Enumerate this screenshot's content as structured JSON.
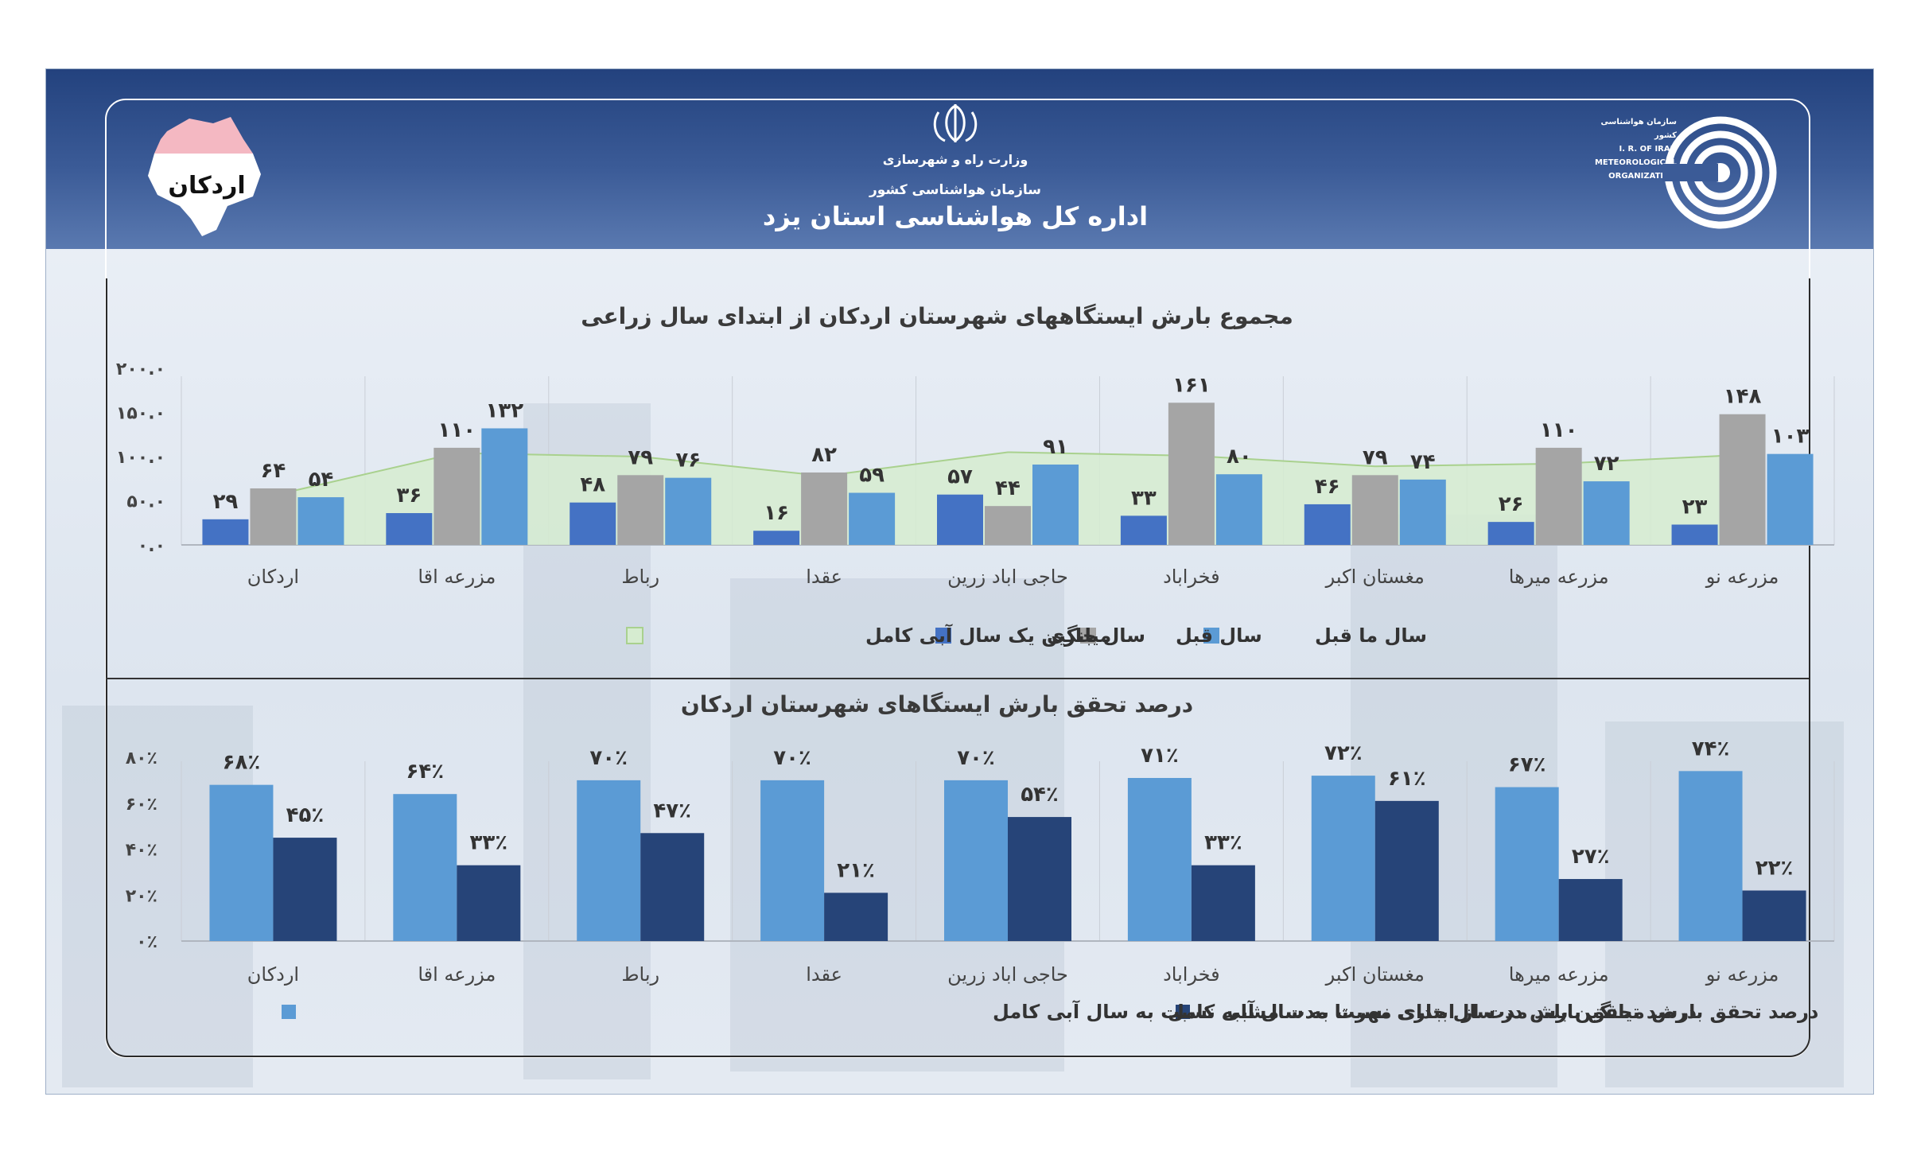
{
  "header": {
    "region_label": "اردکان",
    "ministry": "وزارت راه و شهرسازی",
    "organization": "سازمان هواشناسی کشور",
    "office": "اداره کل هواشناسی استان یزد",
    "logo_text": [
      "سازمان هواشناسی کشور",
      "I. R. OF IRAN",
      "METEOROLOGICAL",
      "ORGANIZATION"
    ]
  },
  "colors": {
    "current_year": "#4472c4",
    "previous_year": "#a5a5a5",
    "two_years_ago": "#5b9bd5",
    "long_term_avg_fill": "#d6ecd0",
    "long_term_avg_line": "#a9d18e",
    "pct_long_term": "#5b9bd5",
    "pct_current": "#264478"
  },
  "chart_data": [
    {
      "type": "bar",
      "title": "مجموع بارش ایستگاههای شهرستان اردکان  از ابتدای سال زراعی",
      "categories": [
        "مزرعه نو",
        "مزرعه میرها",
        "مغستان اکبر",
        "فخراباد",
        "حاجی اباد زرین",
        "عقدا",
        "رباط",
        "مزرعه اقا",
        "اردکان"
      ],
      "ylim": [
        0,
        200
      ],
      "yticks": [
        "۰.۰",
        "۵۰.۰",
        "۱۰۰.۰",
        "۱۵۰.۰",
        "۲۰۰.۰"
      ],
      "series": [
        {
          "name": "سال ما قبل",
          "values": [
            103,
            72,
            74,
            80,
            91,
            59,
            76,
            132,
            54
          ],
          "labels": [
            "۱۰۳",
            "۷۲",
            "۷۴",
            "۸۰",
            "۹۱",
            "۵۹",
            "۷۶",
            "۱۳۲",
            "۵۴"
          ]
        },
        {
          "name": "سال قبل",
          "values": [
            148,
            110,
            79,
            161,
            44,
            82,
            79,
            110,
            64
          ],
          "labels": [
            "۱۴۸",
            "۱۱۰",
            "۷۹",
            "۱۶۱",
            "۴۴",
            "۸۲",
            "۷۹",
            "۱۱۰",
            "۶۴"
          ]
        },
        {
          "name": "سال جاری",
          "values": [
            23,
            26,
            46,
            33,
            57,
            16,
            48,
            36,
            29
          ],
          "labels": [
            "۲۳",
            "۲۶",
            "۴۶",
            "۳۳",
            "۵۷",
            "۱۶",
            "۴۸",
            "۳۶",
            "۲۹"
          ]
        },
        {
          "name": "میانگین  یک سال آبی کامل",
          "type": "area",
          "values": [
            102,
            92,
            89,
            101,
            105,
            78,
            100,
            104,
            56
          ]
        }
      ]
    },
    {
      "type": "bar",
      "title": "درصد تحقق بارش ایستگاهای شهرستان اردکان",
      "categories": [
        "مزرعه نو",
        "مزرعه میرها",
        "مغستان اکبر",
        "فخراباد",
        "حاجی اباد زرین",
        "عقدا",
        "رباط",
        "مزرعه اقا",
        "اردکان"
      ],
      "ylim": [
        0,
        80
      ],
      "yticks": [
        "۰٪",
        "۲۰٪",
        "۴۰٪",
        "۶۰٪",
        "۸۰٪"
      ],
      "series": [
        {
          "name": "درصد تحقق بارش میانگین بلند مدت از ابتدای مهر تا مدت مشابه نسبت به سال آبی کامل",
          "values": [
            74,
            67,
            72,
            71,
            70,
            70,
            70,
            64,
            68
          ],
          "labels": [
            "۷۴٪",
            "۶۷٪",
            "۷۲٪",
            "۷۱٪",
            "۷۰٪",
            "۷۰٪",
            "۷۰٪",
            "۶۴٪",
            "۶۸٪"
          ]
        },
        {
          "name": "درصد تحقق بارش در سال جاری نسبت به سال آبی کامل",
          "values": [
            22,
            27,
            61,
            33,
            54,
            21,
            47,
            33,
            45
          ],
          "labels": [
            "۲۲٪",
            "۲۷٪",
            "۶۱٪",
            "۳۳٪",
            "۵۴٪",
            "۲۱٪",
            "۴۷٪",
            "۳۳٪",
            "۴۵٪"
          ]
        }
      ]
    }
  ]
}
